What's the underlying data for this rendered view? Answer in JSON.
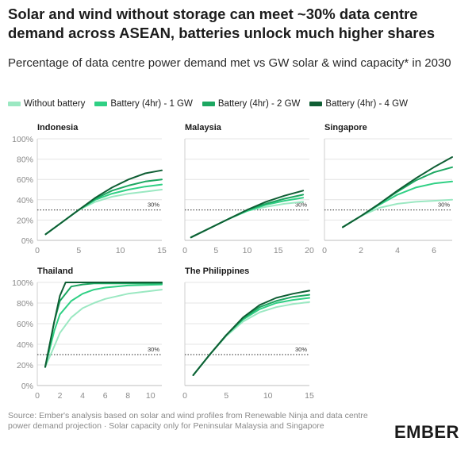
{
  "title": "Solar and wind without storage can meet ~30% data centre demand across ASEAN, batteries unlock much higher shares",
  "subtitle": "Percentage of data centre power demand met vs GW solar & wind capacity* in 2030",
  "source": "Source: Ember's analysis based on solar and wind profiles from Renewable Ninja and data centre power demand projection · Solar capacity only for Peninsular Malaysia and Singapore",
  "logo": "EMBER",
  "colors": {
    "without_battery": "#9be8c2",
    "battery_1gw": "#2fd084",
    "battery_2gw": "#1ca761",
    "battery_4gw": "#0f5e34",
    "grid": "#e4e4e4",
    "reference": "#555555"
  },
  "chart_data": [
    {
      "type": "line",
      "title": "Indonesia",
      "xlim": [
        0,
        15
      ],
      "xticks": [
        0,
        5,
        10,
        15
      ],
      "ylim": [
        0,
        100
      ],
      "yticks": [
        "0%",
        "20%",
        "40%",
        "60%",
        "80%",
        "100%"
      ],
      "reference": {
        "y": 30,
        "label": "30%"
      },
      "series": [
        {
          "name": "Without battery",
          "x": [
            1,
            3,
            5,
            7,
            9,
            11,
            13,
            15
          ],
          "y": [
            6,
            18,
            30,
            38,
            43,
            46,
            48,
            50
          ]
        },
        {
          "name": "Battery (4hr) - 1 GW",
          "x": [
            1,
            3,
            5,
            7,
            9,
            11,
            13,
            15
          ],
          "y": [
            6,
            18,
            30,
            40,
            46,
            50,
            53,
            55
          ]
        },
        {
          "name": "Battery (4hr) - 2 GW",
          "x": [
            1,
            3,
            5,
            7,
            9,
            11,
            13,
            15
          ],
          "y": [
            6,
            18,
            30,
            41,
            49,
            54,
            58,
            60
          ]
        },
        {
          "name": "Battery (4hr) - 4 GW",
          "x": [
            1,
            3,
            5,
            7,
            9,
            11,
            13,
            15
          ],
          "y": [
            6,
            18,
            30,
            42,
            52,
            60,
            66,
            69
          ]
        }
      ]
    },
    {
      "type": "line",
      "title": "Malaysia",
      "xlim": [
        0,
        20
      ],
      "xticks": [
        0,
        5,
        10,
        15,
        20
      ],
      "ylim": [
        0,
        100
      ],
      "yticks": [
        "0%",
        "20%",
        "40%",
        "60%",
        "80%",
        "100%"
      ],
      "reference": {
        "y": 30,
        "label": "30%"
      },
      "series": [
        {
          "name": "Without battery",
          "x": [
            1,
            4,
            7,
            10,
            13,
            16,
            19
          ],
          "y": [
            3,
            12,
            21,
            29,
            33,
            36,
            38
          ]
        },
        {
          "name": "Battery (4hr) - 1 GW",
          "x": [
            1,
            4,
            7,
            10,
            13,
            16,
            19
          ],
          "y": [
            3,
            12,
            21,
            29,
            35,
            39,
            42
          ]
        },
        {
          "name": "Battery (4hr) - 2 GW",
          "x": [
            1,
            4,
            7,
            10,
            13,
            16,
            19
          ],
          "y": [
            3,
            12,
            21,
            30,
            36,
            41,
            45
          ]
        },
        {
          "name": "Battery (4hr) - 4 GW",
          "x": [
            1,
            4,
            7,
            10,
            13,
            16,
            19
          ],
          "y": [
            3,
            12,
            21,
            30,
            38,
            44,
            49
          ]
        }
      ]
    },
    {
      "type": "line",
      "title": "Singapore",
      "xlim": [
        0,
        7
      ],
      "xticks": [
        0,
        2,
        4,
        6
      ],
      "ylim": [
        0,
        100
      ],
      "yticks": [
        "0%",
        "20%",
        "40%",
        "60%",
        "80%",
        "100%"
      ],
      "reference": {
        "y": 30,
        "label": "30%"
      },
      "series": [
        {
          "name": "Without battery",
          "x": [
            1,
            2,
            3,
            4,
            5,
            6,
            7
          ],
          "y": [
            13,
            24,
            32,
            36,
            38,
            39,
            40
          ]
        },
        {
          "name": "Battery (4hr) - 1 GW",
          "x": [
            1,
            2,
            3,
            4,
            5,
            6,
            7
          ],
          "y": [
            13,
            24,
            35,
            45,
            52,
            56,
            58
          ]
        },
        {
          "name": "Battery (4hr) - 2 GW",
          "x": [
            1,
            2,
            3,
            4,
            5,
            6,
            7
          ],
          "y": [
            13,
            24,
            36,
            48,
            59,
            67,
            72
          ]
        },
        {
          "name": "Battery (4hr) - 4 GW",
          "x": [
            1,
            2,
            3,
            4,
            5,
            6,
            7
          ],
          "y": [
            13,
            24,
            36,
            49,
            61,
            72,
            82
          ]
        }
      ]
    },
    {
      "type": "line",
      "title": "Thailand",
      "xlim": [
        0,
        11
      ],
      "xticks": [
        0,
        2,
        4,
        6,
        8,
        10
      ],
      "ylim": [
        0,
        100
      ],
      "yticks": [
        "0%",
        "20%",
        "40%",
        "60%",
        "80%",
        "100%"
      ],
      "reference": {
        "y": 30,
        "label": "30%"
      },
      "series": [
        {
          "name": "Without battery",
          "x": [
            0.7,
            1.5,
            2,
            3,
            4,
            5,
            6,
            8,
            11
          ],
          "y": [
            18,
            38,
            51,
            66,
            75,
            80,
            84,
            89,
            93
          ]
        },
        {
          "name": "Battery (4hr) - 1 GW",
          "x": [
            0.7,
            1.5,
            2,
            3,
            4,
            5,
            6,
            8,
            11
          ],
          "y": [
            18,
            53,
            69,
            82,
            89,
            93,
            95,
            97,
            98
          ]
        },
        {
          "name": "Battery (4hr) - 2 GW",
          "x": [
            0.7,
            1.5,
            2,
            3,
            4,
            5,
            6,
            8,
            11
          ],
          "y": [
            18,
            62,
            82,
            96,
            98,
            99,
            99,
            99,
            99
          ]
        },
        {
          "name": "Battery (4hr) - 4 GW",
          "x": [
            0.7,
            1.5,
            2,
            2.5,
            3,
            4,
            6,
            8,
            11
          ],
          "y": [
            18,
            62,
            87,
            100,
            100,
            100,
            100,
            100,
            100
          ]
        }
      ]
    },
    {
      "type": "line",
      "title": "The Philippines",
      "xlim": [
        0,
        15
      ],
      "xticks": [
        0,
        5,
        10,
        15
      ],
      "ylim": [
        0,
        100
      ],
      "yticks": [
        "0%",
        "20%",
        "40%",
        "60%",
        "80%",
        "100%"
      ],
      "reference": {
        "y": 30,
        "label": "30%"
      },
      "series": [
        {
          "name": "Without battery",
          "x": [
            1,
            3,
            5,
            7,
            9,
            11,
            13,
            15
          ],
          "y": [
            10,
            30,
            48,
            62,
            71,
            76,
            79,
            81
          ]
        },
        {
          "name": "Battery (4hr) - 1 GW",
          "x": [
            1,
            3,
            5,
            7,
            9,
            11,
            13,
            15
          ],
          "y": [
            10,
            30,
            49,
            64,
            74,
            80,
            83,
            85
          ]
        },
        {
          "name": "Battery (4hr) - 2 GW",
          "x": [
            1,
            3,
            5,
            7,
            9,
            11,
            13,
            15
          ],
          "y": [
            10,
            30,
            49,
            65,
            76,
            82,
            86,
            88
          ]
        },
        {
          "name": "Battery (4hr) - 4 GW",
          "x": [
            1,
            3,
            5,
            7,
            9,
            11,
            13,
            15
          ],
          "y": [
            10,
            30,
            49,
            66,
            78,
            85,
            89,
            92
          ]
        }
      ]
    }
  ],
  "legend": [
    {
      "label": "Without battery",
      "color": "#9be8c2"
    },
    {
      "label": "Battery (4hr) - 1 GW",
      "color": "#2fd084"
    },
    {
      "label": "Battery (4hr) - 2 GW",
      "color": "#1ca761"
    },
    {
      "label": "Battery (4hr) - 4 GW",
      "color": "#0f5e34"
    }
  ]
}
